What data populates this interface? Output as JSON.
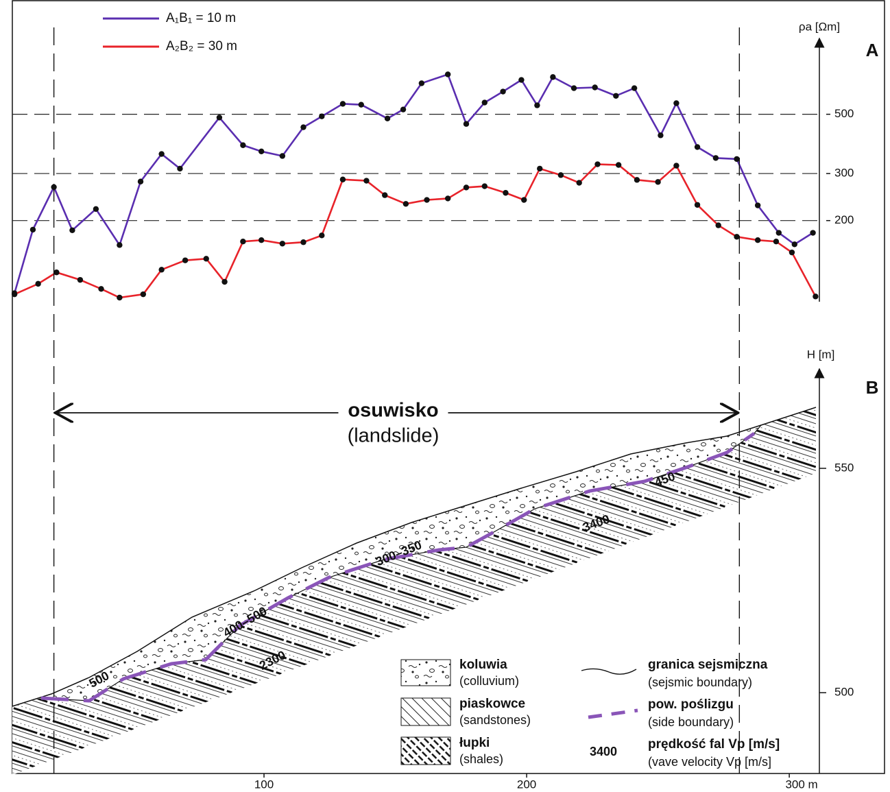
{
  "chart_data": [
    {
      "type": "line",
      "panel": "A",
      "y_label": "ρa [Ωm]",
      "log_scale": true,
      "grid": true,
      "xlim": [
        0,
        336
      ],
      "ylim": [
        100,
        950
      ],
      "yticks": [
        200,
        300,
        500
      ],
      "series": [
        {
          "name": "A₁B₁  = 10 m",
          "color": "#5a2eb0",
          "x": [
            5,
            12,
            20,
            27,
            36,
            45,
            53,
            61,
            68,
            83,
            92,
            99,
            107,
            115,
            122,
            130,
            137,
            147,
            153,
            160,
            170,
            177,
            184,
            191,
            198,
            204,
            210,
            218,
            226,
            234,
            241,
            251,
            257,
            265,
            272,
            280,
            288,
            296,
            302,
            309
          ],
          "values": [
            107,
            185,
            267,
            184,
            221,
            162,
            280,
            355,
            313,
            486,
            383,
            363,
            349,
            447,
            491,
            547,
            543,
            482,
            521,
            653,
            705,
            460,
            553,
            608,
            672,
            540,
            689,
            626,
            630,
            586,
            626,
            417,
            550,
            377,
            343,
            340,
            228,
            180,
            163,
            180
          ]
        },
        {
          "name": "A₂B₂ = 30 m",
          "color": "#e8232a",
          "x": [
            5,
            14,
            21,
            30,
            38,
            45,
            54,
            61,
            70,
            78,
            85,
            92,
            99,
            107,
            115,
            122,
            130,
            139,
            146,
            154,
            162,
            170,
            177,
            184,
            192,
            199,
            205,
            213,
            220,
            227,
            235,
            242,
            250,
            257,
            265,
            273,
            280,
            288,
            295,
            301,
            310
          ],
          "values": [
            106,
            116,
            128,
            120,
            111,
            103,
            106,
            131,
            142,
            144,
            118,
            167,
            169,
            164,
            166,
            176,
            285,
            282,
            249,
            231,
            239,
            242,
            266,
            269,
            254,
            239,
            313,
            296,
            277,
            325,
            323,
            284,
            279,
            321,
            229,
            192,
            174,
            169,
            167,
            152,
            104
          ]
        }
      ]
    },
    {
      "type": "section",
      "panel": "B",
      "y_label": "H [m]",
      "xlim": [
        0,
        336
      ],
      "xticks": [
        100,
        200,
        {
          "value": 300,
          "label": "300 m"
        }
      ],
      "ylim": [
        482,
        572
      ],
      "yticks": [
        500,
        550
      ],
      "landslide": {
        "title": "osuwisko",
        "subtitle": "(landslide)",
        "x": [
          20,
          281
        ]
      },
      "velocity_labels": [
        "500",
        "400–500",
        "2300",
        "300–350",
        "3400",
        "450"
      ],
      "legend": [
        {
          "label": "koluwia",
          "sublabel": "(colluvium)"
        },
        {
          "label": "piaskowce",
          "sublabel": "(sandstones)"
        },
        {
          "label": "łupki",
          "sublabel": "(shales)"
        },
        {
          "label": "granica sejsmiczna",
          "sublabel": "(sejsmic boundary)"
        },
        {
          "label": "pow. poślizgu",
          "sublabel": "(side boundary)"
        },
        {
          "label": "prędkość fal Vp [m/s]",
          "sublabel": "(vave velocity Vp [m/s]",
          "symbol_label": "3400"
        }
      ]
    }
  ]
}
